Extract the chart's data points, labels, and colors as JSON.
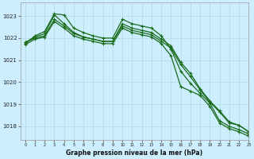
{
  "title": "Graphe pression niveau de la mer (hPa)",
  "background_color": "#cceeff",
  "grid_color": "#aadddd",
  "line_color": "#1a6b1a",
  "xlim": [
    -0.5,
    23
  ],
  "ylim": [
    1017.4,
    1023.6
  ],
  "yticks": [
    1018,
    1019,
    1020,
    1021,
    1022,
    1023
  ],
  "xticks": [
    0,
    1,
    2,
    3,
    4,
    5,
    6,
    7,
    8,
    9,
    10,
    11,
    12,
    13,
    14,
    15,
    16,
    17,
    18,
    19,
    20,
    21,
    22,
    23
  ],
  "series": [
    [
      1021.8,
      1022.0,
      1022.1,
      1022.85,
      1022.55,
      1022.2,
      1022.05,
      1021.95,
      1021.85,
      1021.85,
      1022.55,
      1022.35,
      1022.25,
      1022.15,
      1021.85,
      1021.55,
      1020.8,
      1020.25,
      1019.65,
      1019.1,
      1018.65,
      1018.15,
      1018.05,
      1017.75
    ],
    [
      1021.8,
      1022.05,
      1022.2,
      1023.05,
      1022.65,
      1022.25,
      1022.05,
      1021.95,
      1021.85,
      1021.85,
      1022.65,
      1022.45,
      1022.35,
      1022.25,
      1021.95,
      1021.65,
      1020.9,
      1020.4,
      1019.7,
      1019.15,
      1018.7,
      1018.2,
      1018.05,
      1017.75
    ],
    [
      1021.75,
      1022.1,
      1022.3,
      1023.1,
      1023.05,
      1022.45,
      1022.25,
      1022.1,
      1022.0,
      1022.0,
      1022.85,
      1022.65,
      1022.55,
      1022.45,
      1022.1,
      1021.5,
      1020.5,
      1019.95,
      1019.5,
      1019.05,
      1018.25,
      1018.0,
      1017.85,
      1017.65
    ],
    [
      1021.7,
      1021.95,
      1022.05,
      1022.75,
      1022.45,
      1022.1,
      1021.95,
      1021.85,
      1021.75,
      1021.75,
      1022.45,
      1022.25,
      1022.15,
      1022.05,
      1021.75,
      1021.2,
      1019.8,
      1019.6,
      1019.4,
      1018.9,
      1018.15,
      1017.9,
      1017.75,
      1017.55
    ]
  ]
}
